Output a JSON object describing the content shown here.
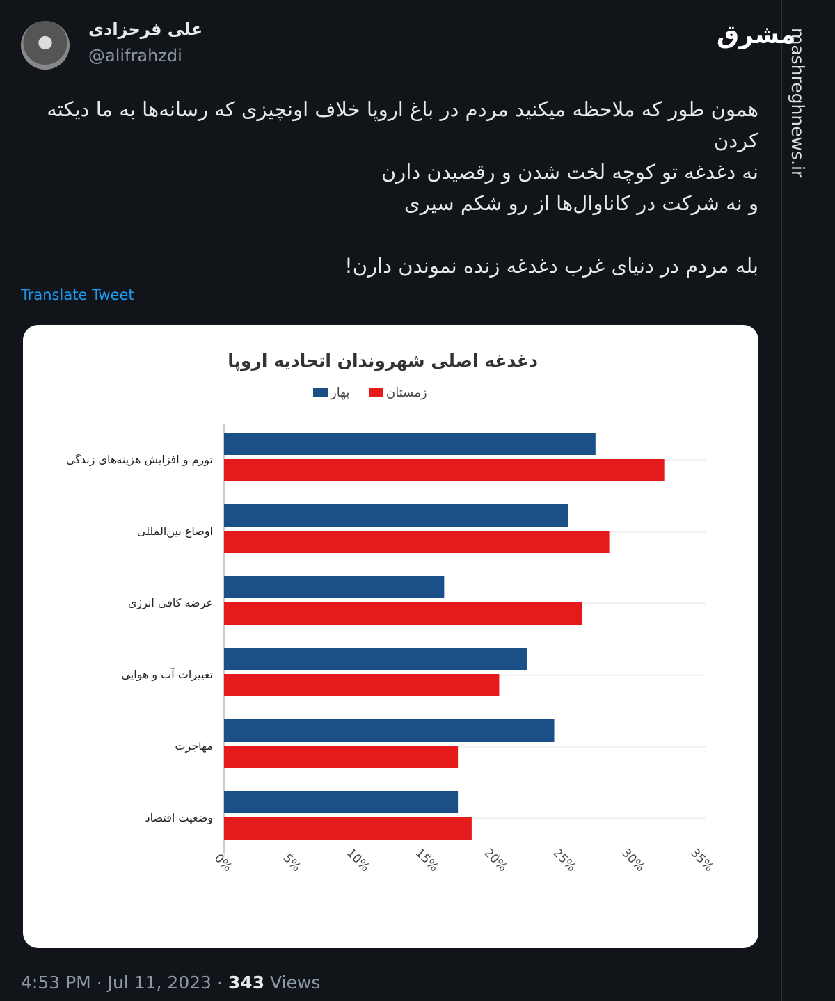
{
  "tweet": {
    "author_name": "علی فرحزادی",
    "handle": "@alifrahzdi",
    "lines": [
      "همون طور که ملاحظه میکنید مردم در باغ اروپا خلاف اونچیزی که رسانه‌ها به ما دیکته کردن",
      "نه دغدغه تو کوچه لخت شدن و رقصیدن دارن",
      "و نه شرکت در کاناوال‌ها از رو شکم سیری",
      "بله مردم در دنیای غرب دغدغه زنده نموندن دارن!"
    ],
    "translate": "Translate Tweet",
    "time": "4:53 PM",
    "separator": "·",
    "date": "Jul 11, 2023",
    "views": "343",
    "views_label": "Views"
  },
  "watermark": {
    "logo": "مشرق",
    "site": "mashreghnews.ir"
  },
  "chart_data": {
    "type": "bar",
    "orientation": "horizontal",
    "title": "دغدغه اصلی شهروندان اتحادیه اروپا",
    "categories": [
      "تورم و افزایش هزینه‌های زندگی",
      "اوضاع بین‌المللی",
      "عرضه کافی انرژی",
      "تغییرات آب و هوایی",
      "مهاجرت",
      "وضعیت اقتصاد"
    ],
    "series": [
      {
        "name": "بهار",
        "color": "#1b4f87",
        "values": [
          27,
          25,
          16,
          22,
          24,
          17
        ]
      },
      {
        "name": "زمستان",
        "color": "#e51a1a",
        "values": [
          32,
          28,
          26,
          20,
          17,
          18
        ]
      }
    ],
    "xlim": [
      0,
      35
    ],
    "xticks": [
      {
        "value": 0,
        "label": "0%"
      },
      {
        "value": 5,
        "label": "5%"
      },
      {
        "value": 10,
        "label": "10%"
      },
      {
        "value": 15,
        "label": "15%"
      },
      {
        "value": 20,
        "label": "20%"
      },
      {
        "value": 25,
        "label": "25%"
      },
      {
        "value": 30,
        "label": "30%"
      },
      {
        "value": 35,
        "label": "35%"
      }
    ]
  }
}
